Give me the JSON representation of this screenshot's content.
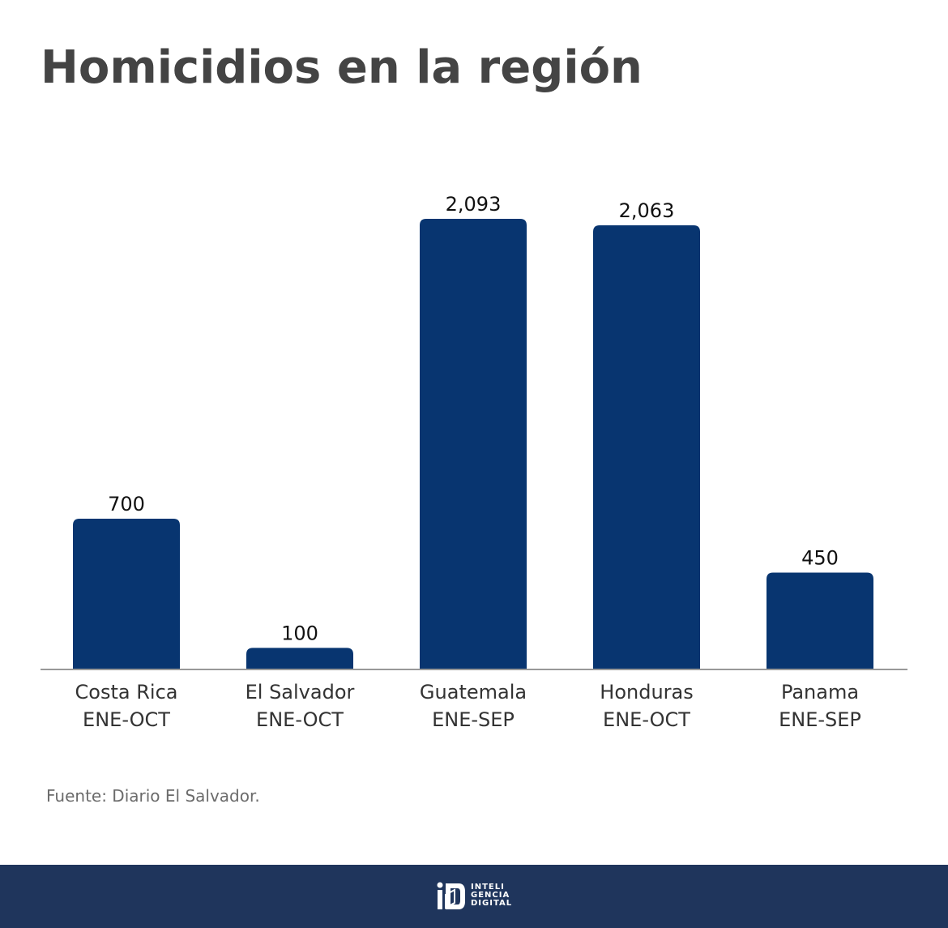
{
  "title": "Homicidios en la región",
  "source": "Fuente: Diario El Salvador.",
  "colors": {
    "bar": "#083570",
    "axis": "#999999",
    "footer": "#1f355c"
  },
  "logo": {
    "line1": "INTELI",
    "line2": "GENCIA",
    "line3": "DIGITAL"
  },
  "chart_data": {
    "type": "bar",
    "title": "Homicidios en la región",
    "categories": [
      [
        "Costa Rica",
        "ENE-OCT"
      ],
      [
        "El Salvador",
        "ENE-OCT"
      ],
      [
        "Guatemala",
        "ENE-SEP"
      ],
      [
        "Honduras",
        "ENE-OCT"
      ],
      [
        "Panama",
        "ENE-SEP"
      ]
    ],
    "values": [
      700,
      100,
      2093,
      2063,
      450
    ],
    "value_labels": [
      "700",
      "100",
      "2,093",
      "2,063",
      "450"
    ],
    "xlabel": "",
    "ylabel": "",
    "ylim": [
      0,
      2093
    ],
    "grid": false,
    "legend": "none"
  }
}
